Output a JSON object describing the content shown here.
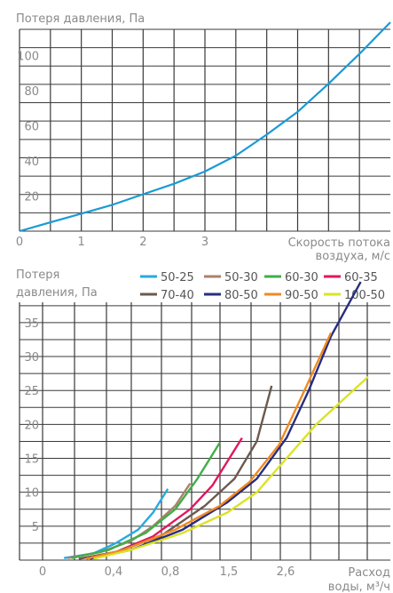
{
  "chart_data": [
    {
      "type": "line",
      "title": "",
      "ylabel": "Потеря давления, Па",
      "xlabel": "Скорость потока воздуха, м/с",
      "xlim": [
        0,
        6
      ],
      "ylim": [
        0,
        115
      ],
      "x_ticks": [
        "0",
        "1",
        "2",
        "3"
      ],
      "y_ticks": [
        "20",
        "40",
        "60",
        "80",
        "100"
      ],
      "grid": true,
      "series": [
        {
          "color": "#1a9ad6",
          "x": [
            0,
            0.5,
            1.0,
            1.5,
            2.0,
            2.5,
            3.0,
            3.5,
            4.0,
            4.5,
            5.0,
            5.5,
            6.0
          ],
          "y": [
            0,
            5,
            10,
            15,
            21,
            27,
            34,
            43,
            55,
            68,
            84,
            101,
            119
          ]
        }
      ]
    },
    {
      "type": "line",
      "title": "",
      "ylabel": "Потеря давления, Па",
      "xlabel": "Расход воды, м³/ч",
      "xlim": [
        -0.3,
        4.7
      ],
      "ylim": [
        0,
        38
      ],
      "x_ticks": [
        "0",
        "0,4",
        "0,8",
        "1,5",
        "2,6"
      ],
      "y_ticks": [
        "5",
        "10",
        "15",
        "20",
        "25",
        "30",
        "35"
      ],
      "grid": true,
      "legend": "top",
      "series": [
        {
          "name": "50-25",
          "color": "#29a9e0",
          "x": [
            0.3,
            0.7,
            1.0,
            1.3,
            1.5,
            1.7
          ],
          "y": [
            0.3,
            1,
            2.5,
            4.5,
            7,
            10.5
          ]
        },
        {
          "name": "50-30",
          "color": "#a9826b",
          "x": [
            0.35,
            0.8,
            1.2,
            1.5,
            1.8,
            2.0
          ],
          "y": [
            0.3,
            1.2,
            2.8,
            5,
            8,
            11.3
          ]
        },
        {
          "name": "60-30",
          "color": "#41ad49",
          "x": [
            0.4,
            0.9,
            1.4,
            1.8,
            2.1,
            2.4
          ],
          "y": [
            0.3,
            1.5,
            4,
            7.5,
            12,
            17.3
          ]
        },
        {
          "name": "60-35",
          "color": "#e1175d",
          "x": [
            0.5,
            1.0,
            1.5,
            2.0,
            2.3,
            2.7
          ],
          "y": [
            0.2,
            1.2,
            3.5,
            7.5,
            11,
            18
          ]
        },
        {
          "name": "70-40",
          "color": "#6b5a4f",
          "x": [
            0.5,
            1.0,
            1.6,
            2.2,
            2.6,
            2.9,
            3.1
          ],
          "y": [
            0.2,
            1.2,
            3.5,
            8,
            12,
            17.5,
            25.7
          ]
        },
        {
          "name": "80-50",
          "color": "#272d80",
          "x": [
            0.65,
            1.2,
            1.9,
            2.5,
            2.9,
            3.3,
            3.6,
            3.9,
            4.3
          ],
          "y": [
            0.2,
            1.5,
            4.5,
            8.5,
            12,
            18,
            25,
            33,
            41
          ]
        },
        {
          "name": "90-50",
          "color": "#f18a21",
          "x": [
            0.6,
            1.1,
            1.8,
            2.4,
            2.8,
            3.2,
            3.5,
            3.9
          ],
          "y": [
            0.2,
            1.5,
            4.5,
            8,
            11.5,
            17,
            24,
            33.5
          ]
        },
        {
          "name": "100-50",
          "color": "#dbe326",
          "x": [
            0.7,
            1.2,
            1.9,
            2.5,
            2.9,
            3.3,
            3.7,
            4.1,
            4.4
          ],
          "y": [
            0.2,
            1.5,
            4,
            7,
            10,
            15,
            20,
            24,
            27
          ]
        }
      ]
    }
  ]
}
